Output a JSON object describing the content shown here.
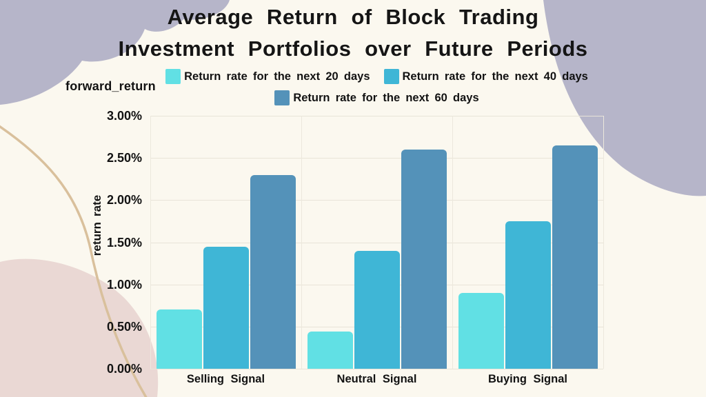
{
  "title": {
    "line1": "Average Return of Block Trading",
    "line2": "Investment Portfolios over Future Periods"
  },
  "labels": {
    "forward_return": "forward_return"
  },
  "chart_data": {
    "type": "bar",
    "title": "Average Return of Block Trading Investment Portfolios over Future Periods",
    "categories": [
      "Selling Signal",
      "Neutral Signal",
      "Buying Signal"
    ],
    "series": [
      {
        "name": "Return rate for the next 20 days",
        "color": "#61E0E4",
        "values": [
          0.7,
          0.44,
          0.9
        ]
      },
      {
        "name": "Return rate for the next 40 days",
        "color": "#3FB6D6",
        "values": [
          1.45,
          1.4,
          1.75
        ]
      },
      {
        "name": "Return rate for the next 60 days",
        "color": "#5492B9",
        "values": [
          2.3,
          2.6,
          2.65
        ]
      }
    ],
    "value_unit": "%",
    "ylabel": "return rate",
    "ylim": [
      0,
      3.0
    ],
    "ytick_step": 0.5,
    "yticks": [
      "3.00%",
      "2.50%",
      "2.00%",
      "1.50%",
      "1.00%",
      "0.50%",
      "0.00%"
    ],
    "grid": true,
    "legend_position": "top"
  },
  "colors": {
    "background": "#FBF8EF",
    "lavender_blob": "#B6B5C9",
    "pink_blob": "#EAD8D4",
    "tan_line": "#D9C09C",
    "gridline": "#E8E4D8",
    "text": "#121212"
  }
}
